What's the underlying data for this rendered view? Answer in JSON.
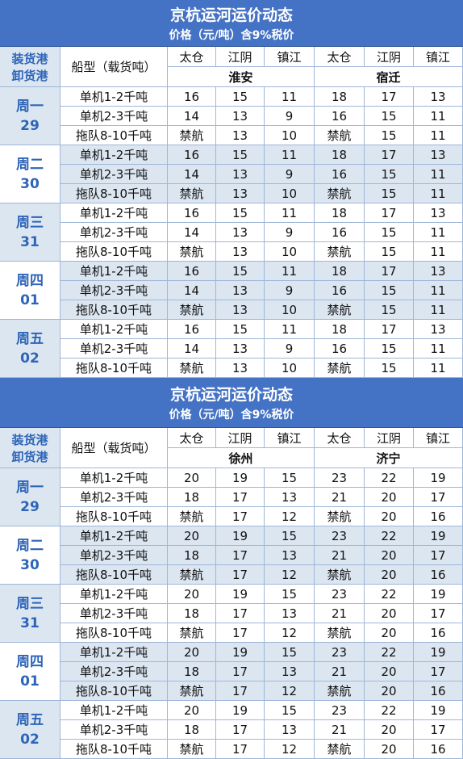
{
  "tables": [
    {
      "title": "京杭运河运价动态",
      "subtitle": "价格（元/吨）含9%税价",
      "header": {
        "left": [
          "装货港",
          "卸货港"
        ],
        "ship_type": "船型（载货吨）",
        "ports": [
          "太仓",
          "江阴",
          "镇江",
          "太仓",
          "江阴",
          "镇江"
        ],
        "destinations": [
          "淮安",
          "宿迁"
        ]
      },
      "groups": [
        {
          "day": "周一",
          "date": "29",
          "rows": [
            {
              "type": "单机1-2千吨",
              "values": [
                16,
                15,
                11,
                18,
                17,
                13
              ]
            },
            {
              "type": "单机2-3千吨",
              "values": [
                14,
                13,
                9,
                16,
                15,
                11
              ]
            },
            {
              "type": "拖队8-10千吨",
              "values": [
                "禁航",
                13,
                10,
                "禁航",
                15,
                11
              ]
            }
          ]
        },
        {
          "day": "周二",
          "date": "30",
          "rows": [
            {
              "type": "单机1-2千吨",
              "values": [
                16,
                15,
                11,
                18,
                17,
                13
              ]
            },
            {
              "type": "单机2-3千吨",
              "values": [
                14,
                13,
                9,
                16,
                15,
                11
              ]
            },
            {
              "type": "拖队8-10千吨",
              "values": [
                "禁航",
                13,
                10,
                "禁航",
                15,
                11
              ]
            }
          ]
        },
        {
          "day": "周三",
          "date": "31",
          "rows": [
            {
              "type": "单机1-2千吨",
              "values": [
                16,
                15,
                11,
                18,
                17,
                13
              ]
            },
            {
              "type": "单机2-3千吨",
              "values": [
                14,
                13,
                9,
                16,
                15,
                11
              ]
            },
            {
              "type": "拖队8-10千吨",
              "values": [
                "禁航",
                13,
                10,
                "禁航",
                15,
                11
              ]
            }
          ]
        },
        {
          "day": "周四",
          "date": "01",
          "rows": [
            {
              "type": "单机1-2千吨",
              "values": [
                16,
                15,
                11,
                18,
                17,
                13
              ]
            },
            {
              "type": "单机2-3千吨",
              "values": [
                14,
                13,
                9,
                16,
                15,
                11
              ]
            },
            {
              "type": "拖队8-10千吨",
              "values": [
                "禁航",
                13,
                10,
                "禁航",
                15,
                11
              ]
            }
          ]
        },
        {
          "day": "周五",
          "date": "02",
          "rows": [
            {
              "type": "单机1-2千吨",
              "values": [
                16,
                15,
                11,
                18,
                17,
                13
              ]
            },
            {
              "type": "单机2-3千吨",
              "values": [
                14,
                13,
                9,
                16,
                15,
                11
              ]
            },
            {
              "type": "拖队8-10千吨",
              "values": [
                "禁航",
                13,
                10,
                "禁航",
                15,
                11
              ]
            }
          ]
        }
      ]
    },
    {
      "title": "京杭运河运价动态",
      "subtitle": "价格（元/吨）含9%税价",
      "header": {
        "left": [
          "装货港",
          "卸货港"
        ],
        "ship_type": "船型（载货吨）",
        "ports": [
          "太仓",
          "江阴",
          "镇江",
          "太仓",
          "江阴",
          "镇江"
        ],
        "destinations": [
          "徐州",
          "济宁"
        ]
      },
      "groups": [
        {
          "day": "周一",
          "date": "29",
          "rows": [
            {
              "type": "单机1-2千吨",
              "values": [
                20,
                19,
                15,
                23,
                22,
                19
              ]
            },
            {
              "type": "单机2-3千吨",
              "values": [
                18,
                17,
                13,
                21,
                20,
                17
              ]
            },
            {
              "type": "拖队8-10千吨",
              "values": [
                "禁航",
                17,
                12,
                "禁航",
                20,
                16
              ]
            }
          ]
        },
        {
          "day": "周二",
          "date": "30",
          "rows": [
            {
              "type": "单机1-2千吨",
              "values": [
                20,
                19,
                15,
                23,
                22,
                19
              ]
            },
            {
              "type": "单机2-3千吨",
              "values": [
                18,
                17,
                13,
                21,
                20,
                17
              ]
            },
            {
              "type": "拖队8-10千吨",
              "values": [
                "禁航",
                17,
                12,
                "禁航",
                20,
                16
              ]
            }
          ]
        },
        {
          "day": "周三",
          "date": "31",
          "rows": [
            {
              "type": "单机1-2千吨",
              "values": [
                20,
                19,
                15,
                23,
                22,
                19
              ]
            },
            {
              "type": "单机2-3千吨",
              "values": [
                18,
                17,
                13,
                21,
                20,
                17
              ]
            },
            {
              "type": "拖队8-10千吨",
              "values": [
                "禁航",
                17,
                12,
                "禁航",
                20,
                16
              ]
            }
          ]
        },
        {
          "day": "周四",
          "date": "01",
          "rows": [
            {
              "type": "单机1-2千吨",
              "values": [
                20,
                19,
                15,
                23,
                22,
                19
              ]
            },
            {
              "type": "单机2-3千吨",
              "values": [
                18,
                17,
                13,
                21,
                20,
                17
              ]
            },
            {
              "type": "拖队8-10千吨",
              "values": [
                "禁航",
                17,
                12,
                "禁航",
                20,
                16
              ]
            }
          ]
        },
        {
          "day": "周五",
          "date": "02",
          "rows": [
            {
              "type": "单机1-2千吨",
              "values": [
                20,
                19,
                15,
                23,
                22,
                19
              ]
            },
            {
              "type": "单机2-3千吨",
              "values": [
                18,
                17,
                13,
                21,
                20,
                17
              ]
            },
            {
              "type": "拖队8-10千吨",
              "values": [
                "禁航",
                17,
                12,
                "禁航",
                20,
                16
              ]
            }
          ]
        }
      ]
    }
  ]
}
